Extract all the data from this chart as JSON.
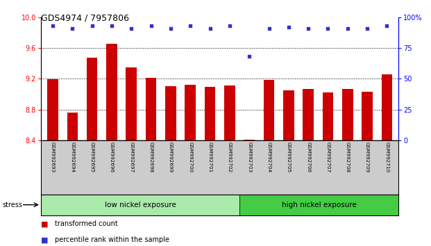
{
  "title": "GDS4974 / 7957806",
  "samples": [
    "GSM992693",
    "GSM992694",
    "GSM992695",
    "GSM992696",
    "GSM992697",
    "GSM992698",
    "GSM992699",
    "GSM992700",
    "GSM992701",
    "GSM992702",
    "GSM992703",
    "GSM992704",
    "GSM992705",
    "GSM992706",
    "GSM992707",
    "GSM992708",
    "GSM992709",
    "GSM992710"
  ],
  "bar_values": [
    9.19,
    8.76,
    9.47,
    9.65,
    9.35,
    9.21,
    9.1,
    9.12,
    9.09,
    9.11,
    8.41,
    9.18,
    9.05,
    9.07,
    9.02,
    9.07,
    9.03,
    9.26
  ],
  "percentile_values": [
    93,
    91,
    93,
    93,
    91,
    93,
    91,
    93,
    91,
    93,
    68,
    91,
    92,
    91,
    91,
    91,
    91,
    93
  ],
  "ylim_left": [
    8.4,
    10.0
  ],
  "ylim_right": [
    0,
    100
  ],
  "yticks_left": [
    8.4,
    8.8,
    9.2,
    9.6,
    10.0
  ],
  "yticks_right": [
    0,
    25,
    50,
    75,
    100
  ],
  "ytick_labels_right": [
    "0",
    "25",
    "50",
    "75",
    "100%"
  ],
  "bar_color": "#cc0000",
  "dot_color": "#3333cc",
  "group1_label": "low nickel exposure",
  "group2_label": "high nickel exposure",
  "group1_count": 10,
  "group2_count": 8,
  "group1_color": "#aaeaaa",
  "group2_color": "#44cc44",
  "stress_label": "stress",
  "legend_bar_label": "transformed count",
  "legend_dot_label": "percentile rank within the sample",
  "background_color": "#ffffff",
  "xlabel_area_color": "#cccccc"
}
